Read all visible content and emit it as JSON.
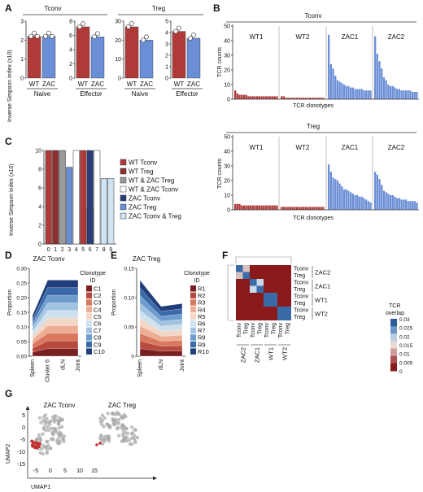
{
  "colors": {
    "wt": "#b03a3a",
    "zac": "#6b8fd6",
    "wt_treg": "#8e2e2e",
    "zac_treg": "#3f63b8",
    "wt_zac_treg": "#9a9a9a",
    "wt_zac_tconv": "#ffffff",
    "zac_tconv_treg": "#cfe3f2",
    "zac_tconv_c": "#2b3d7a"
  },
  "panels": {
    "a": {
      "label": "A",
      "tconv_title": "Tconv",
      "treg_title": "Treg",
      "ylabel": "Inverse Simpson index (x10)",
      "naive": "Naive",
      "effector": "Effector"
    },
    "b": {
      "label": "B",
      "tconv_title": "Tconv",
      "treg_title": "Treg",
      "ylabel": "TCR counts",
      "xlabel": "TCR clonotypes",
      "groups": [
        "WT1",
        "WT2",
        "ZAC1",
        "ZAC2"
      ]
    },
    "c": {
      "label": "C",
      "ylabel": "Inverse Simpson index (x10)",
      "legend": [
        "WT Tconv",
        "WT Treg",
        "WT & ZAC Treg",
        "WT & ZAC Tconv",
        "ZAC Tconv",
        "ZAC Treg",
        "ZAC Tconv & Treg"
      ]
    },
    "d": {
      "label": "D",
      "title": "ZAC Tconv",
      "ylabel": "Proportion",
      "legend_title_1": "Clonotype",
      "legend_title_2": "ID",
      "ids": [
        "C1",
        "C2",
        "C3",
        "C4",
        "C5",
        "C6",
        "C7",
        "C8",
        "C9",
        "C10"
      ],
      "x": [
        "Spleen",
        "Cluster 6",
        "dLN",
        "Joint"
      ]
    },
    "e": {
      "label": "E",
      "title": "ZAC Treg",
      "ylabel": "Proportion",
      "legend_title_1": "Clonotype",
      "legend_title_2": "ID",
      "ids": [
        "R1",
        "R2",
        "R3",
        "R4",
        "R5",
        "R6",
        "R7",
        "R8",
        "R9",
        "R10"
      ],
      "x": [
        "Spleen",
        "dLN",
        "Joint"
      ]
    },
    "f": {
      "label": "F",
      "cbar_title_1": "TCR",
      "cbar_title_2": "overlap",
      "cbar_ticks": [
        "0.03",
        "0.025",
        "0.02",
        "0.015",
        "0.01",
        "0.005",
        "0"
      ],
      "rows": [
        "Tconv",
        "Treg",
        "Tconv",
        "Treg",
        "Tconv",
        "Treg",
        "Tconv",
        "Treg"
      ],
      "groups": [
        "ZAC2",
        "ZAC1",
        "WT1",
        "WT2"
      ]
    },
    "g": {
      "label": "G",
      "title_1": "ZAC Tconv",
      "title_2": "ZAC Treg",
      "xlabel": "UMAP1",
      "ylabel": "UMAP2",
      "xticks": [
        "-5",
        "0",
        "5",
        "10",
        "15"
      ],
      "yticks": [
        "5",
        "0",
        "-5",
        "-10",
        "-15"
      ]
    }
  },
  "chart_data": [
    {
      "type": "bar",
      "panel": "A",
      "subplots": [
        {
          "title": "Tconv",
          "group": "Naive",
          "categories": [
            "WT",
            "ZAC"
          ],
          "values": [
            2.2,
            2.2
          ],
          "ylim": [
            0,
            3
          ],
          "yticks": [
            "0",
            "1",
            "2",
            "3"
          ]
        },
        {
          "title": "Tconv",
          "group": "Effector",
          "categories": [
            "WT",
            "ZAC"
          ],
          "values": [
            7.2,
            5.8
          ],
          "ylim": [
            0,
            8
          ],
          "yticks": [
            "0",
            "2",
            "4",
            "6",
            "8"
          ]
        },
        {
          "title": "Treg",
          "group": "Naive",
          "categories": [
            "WT",
            "ZAC"
          ],
          "values": [
            27,
            20
          ],
          "ylim": [
            0,
            30
          ],
          "yticks": [
            "0",
            "10",
            "20",
            "30"
          ]
        },
        {
          "title": "Treg",
          "group": "Effector",
          "categories": [
            "WT",
            "ZAC"
          ],
          "values": [
            4.1,
            3.5
          ],
          "ylim": [
            0,
            5
          ],
          "yticks": [
            "0",
            "1",
            "2",
            "3",
            "4",
            "5"
          ]
        }
      ]
    },
    {
      "type": "bar",
      "panel": "B",
      "yticks": [
        "0",
        "10",
        "20",
        "30",
        "40",
        "50"
      ],
      "ylim": [
        0,
        50
      ],
      "subplots": [
        {
          "title": "Tconv",
          "series": [
            {
              "name": "WT1",
              "values": [
                6,
                4,
                3,
                3,
                3,
                3,
                2,
                2,
                2,
                2,
                2,
                2,
                2,
                2,
                2,
                2,
                2,
                2,
                2,
                2
              ]
            },
            {
              "name": "WT2",
              "values": [
                2,
                2,
                1,
                1,
                1,
                1,
                1,
                1,
                1,
                1,
                1,
                1,
                1,
                1,
                1,
                1,
                1,
                1,
                1,
                1
              ]
            },
            {
              "name": "ZAC1",
              "values": [
                44,
                24,
                21,
                16,
                13,
                12,
                11,
                10,
                9,
                9,
                8,
                8,
                7,
                7,
                7,
                7,
                6,
                6,
                6,
                6
              ]
            },
            {
              "name": "ZAC2",
              "values": [
                43,
                31,
                26,
                21,
                15,
                13,
                10,
                9,
                9,
                8,
                7,
                7,
                6,
                6,
                6,
                6,
                6,
                5,
                5,
                5
              ]
            }
          ]
        },
        {
          "title": "Treg",
          "series": [
            {
              "name": "WT1",
              "values": [
                4,
                4,
                4,
                3,
                3,
                3,
                3,
                3,
                3,
                3,
                3,
                3,
                3,
                3,
                3,
                3,
                3,
                3,
                3,
                3
              ]
            },
            {
              "name": "WT2",
              "values": [
                2,
                2,
                2,
                2,
                2,
                2,
                2,
                2,
                2,
                2,
                2,
                2,
                2,
                2,
                2,
                2,
                2,
                2,
                2,
                2
              ]
            },
            {
              "name": "ZAC1",
              "values": [
                31,
                26,
                22,
                21,
                20,
                18,
                16,
                14,
                14,
                13,
                12,
                11,
                10,
                10,
                9,
                9,
                8,
                7,
                6,
                5
              ]
            },
            {
              "name": "ZAC2",
              "values": [
                26,
                24,
                21,
                17,
                13,
                12,
                11,
                10,
                10,
                9,
                8,
                8,
                7,
                7,
                7,
                6,
                6,
                6,
                6,
                5
              ]
            }
          ]
        }
      ]
    },
    {
      "type": "bar",
      "panel": "C",
      "categories": [
        "0",
        "1",
        "2",
        "3",
        "4",
        "5",
        "6",
        "7",
        "8",
        "9"
      ],
      "values": [
        10,
        10,
        10,
        0,
        10,
        10,
        10,
        10,
        7,
        7
      ],
      "secondary_values": [
        null,
        null,
        null,
        8.2,
        null,
        null,
        3.8,
        null,
        null,
        null
      ],
      "ylim": [
        0,
        10
      ],
      "yticks": [
        "0",
        "2",
        "4",
        "6",
        "8",
        "10"
      ]
    },
    {
      "type": "area",
      "panel": "D",
      "x": [
        "Spleen",
        "Cluster 6",
        "dLN",
        "Joint"
      ],
      "ylim": [
        0,
        0.3
      ],
      "yticks": [
        "0.00",
        "0.05",
        "0.10",
        "0.15",
        "0.20",
        "0.25",
        "0.30"
      ],
      "totals": [
        0.14,
        0.26,
        0.26,
        0.26
      ]
    },
    {
      "type": "area",
      "panel": "E",
      "x": [
        "Spleen",
        "dLN",
        "Joint"
      ],
      "ylim": [
        0,
        0.15
      ],
      "yticks": [
        "0",
        "0.05",
        "0.10",
        "0.15"
      ],
      "totals": [
        0.13,
        0.085,
        0.09
      ]
    },
    {
      "type": "heatmap",
      "panel": "F",
      "value_range": [
        0,
        0.03
      ],
      "matrix": [
        [
          0.03,
          0.015,
          0,
          0,
          0,
          0,
          0,
          0
        ],
        [
          0.015,
          0.03,
          0,
          0,
          0,
          0,
          0,
          0
        ],
        [
          0,
          0,
          0.03,
          0.02,
          0,
          0,
          0,
          0
        ],
        [
          0,
          0,
          0.02,
          0.03,
          0,
          0,
          0,
          0
        ],
        [
          0,
          0,
          0,
          0,
          0.03,
          0.025,
          0,
          0
        ],
        [
          0,
          0,
          0,
          0,
          0.025,
          0.03,
          0,
          0
        ],
        [
          0,
          0,
          0,
          0,
          0,
          0,
          0.03,
          0.025
        ],
        [
          0,
          0,
          0,
          0,
          0,
          0,
          0.025,
          0.03
        ]
      ]
    },
    {
      "type": "scatter",
      "panel": "G",
      "xlim": [
        -5,
        15
      ],
      "ylim": [
        -15,
        5
      ],
      "note_highlight": "red cluster near (-3, -3)"
    }
  ]
}
